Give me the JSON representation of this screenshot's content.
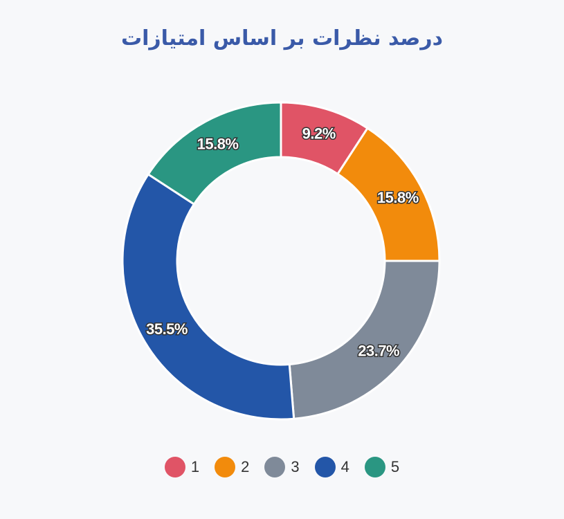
{
  "chart_data": {
    "type": "pie",
    "variant": "donut",
    "title": "درصد نظرات بر اساس امتیازات",
    "categories": [
      "1",
      "2",
      "3",
      "4",
      "5"
    ],
    "values": [
      9.2,
      15.8,
      23.7,
      35.5,
      15.8
    ],
    "value_labels": [
      "9.2%",
      "15.8%",
      "23.7%",
      "35.5%",
      "15.8%"
    ],
    "colors": [
      "#e05466",
      "#f28b0c",
      "#7f8a99",
      "#2356a8",
      "#2a9682"
    ],
    "legend_position": "bottom",
    "start_angle": "top",
    "direction": "clockwise"
  }
}
